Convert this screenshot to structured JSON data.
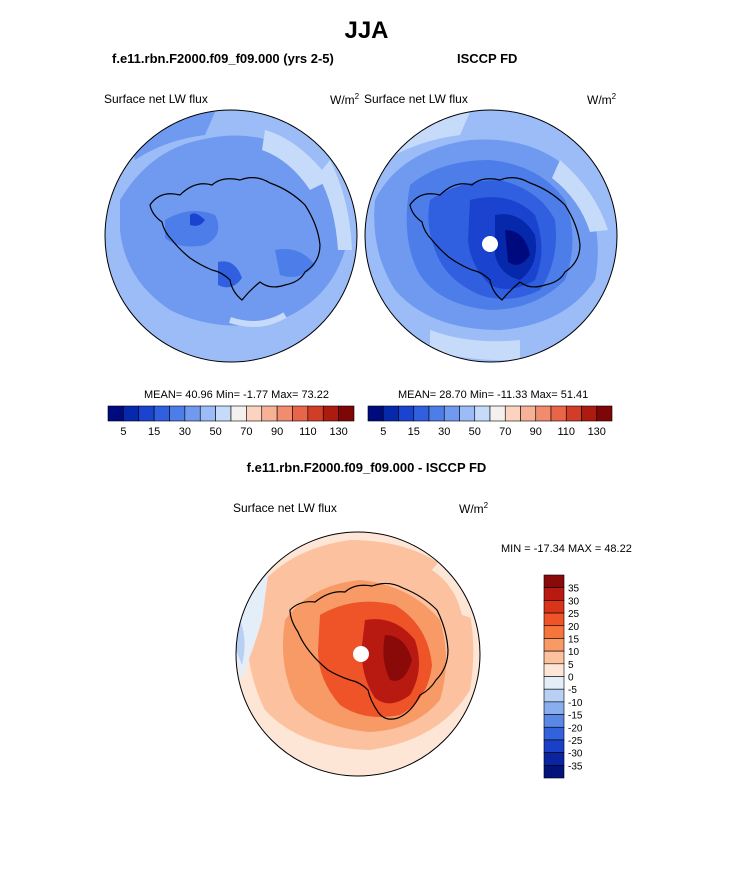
{
  "season": "JJA",
  "model_title": "f.e11.rbn.F2000.f09_f09.000 (yrs 2-5)",
  "obs_title": "ISCCP FD",
  "diff_title": "f.e11.rbn.F2000.f09_f09.000 - ISCCP FD",
  "variable": "Surface net LW flux",
  "units": "W/m",
  "units_exp": "2",
  "model_stats": "MEAN=  40.96  Min=  -1.77  Max=  73.22",
  "obs_stats": "MEAN=  28.70  Min= -11.33  Max=  51.41",
  "diff_stats": "MIN = -17.34 MAX =  48.22",
  "abs_colorbar_labels": [
    "5",
    "15",
    "30",
    "50",
    "70",
    "90",
    "110",
    "130"
  ],
  "diff_colorbar_labels": [
    "35",
    "30",
    "25",
    "20",
    "15",
    "10",
    "5",
    "0",
    "-5",
    "-10",
    "-15",
    "-20",
    "-25",
    "-30",
    "-35"
  ],
  "abs_colors": [
    "#000a7f",
    "#0628aa",
    "#1a44cf",
    "#3060e0",
    "#4d7de9",
    "#6f9af0",
    "#9bbcf6",
    "#c6dbf9",
    "#f3f0ee",
    "#fbd3c0",
    "#f7b196",
    "#f18d6c",
    "#e8654a",
    "#d23d28",
    "#ad1a10",
    "#7d0707"
  ],
  "diff_colors": [
    "#8a0a0a",
    "#b81a12",
    "#d83418",
    "#ee5428",
    "#f5763c",
    "#f89a66",
    "#fcc2a0",
    "#fde6d6",
    "#e4eef9",
    "#b8d0f4",
    "#88aeee",
    "#5a88e6",
    "#3262dc",
    "#1a40c8",
    "#0b24a0",
    "#03137a"
  ]
}
